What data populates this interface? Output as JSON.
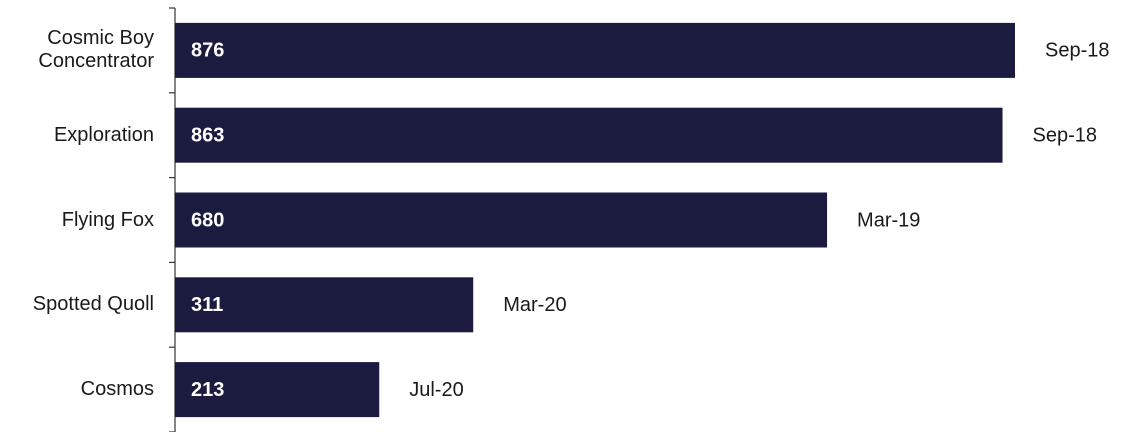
{
  "chart_data": {
    "type": "bar",
    "orientation": "horizontal",
    "categories": [
      "Cosmic Boy Concentrator",
      "Exploration",
      "Flying Fox",
      "Spotted Quoll",
      "Cosmos"
    ],
    "values": [
      876,
      863,
      680,
      311,
      213
    ],
    "annotations": [
      "Sep-18",
      "Sep-18",
      "Mar-19",
      "Mar-20",
      "Jul-20"
    ],
    "color": "#1b1b3f"
  }
}
